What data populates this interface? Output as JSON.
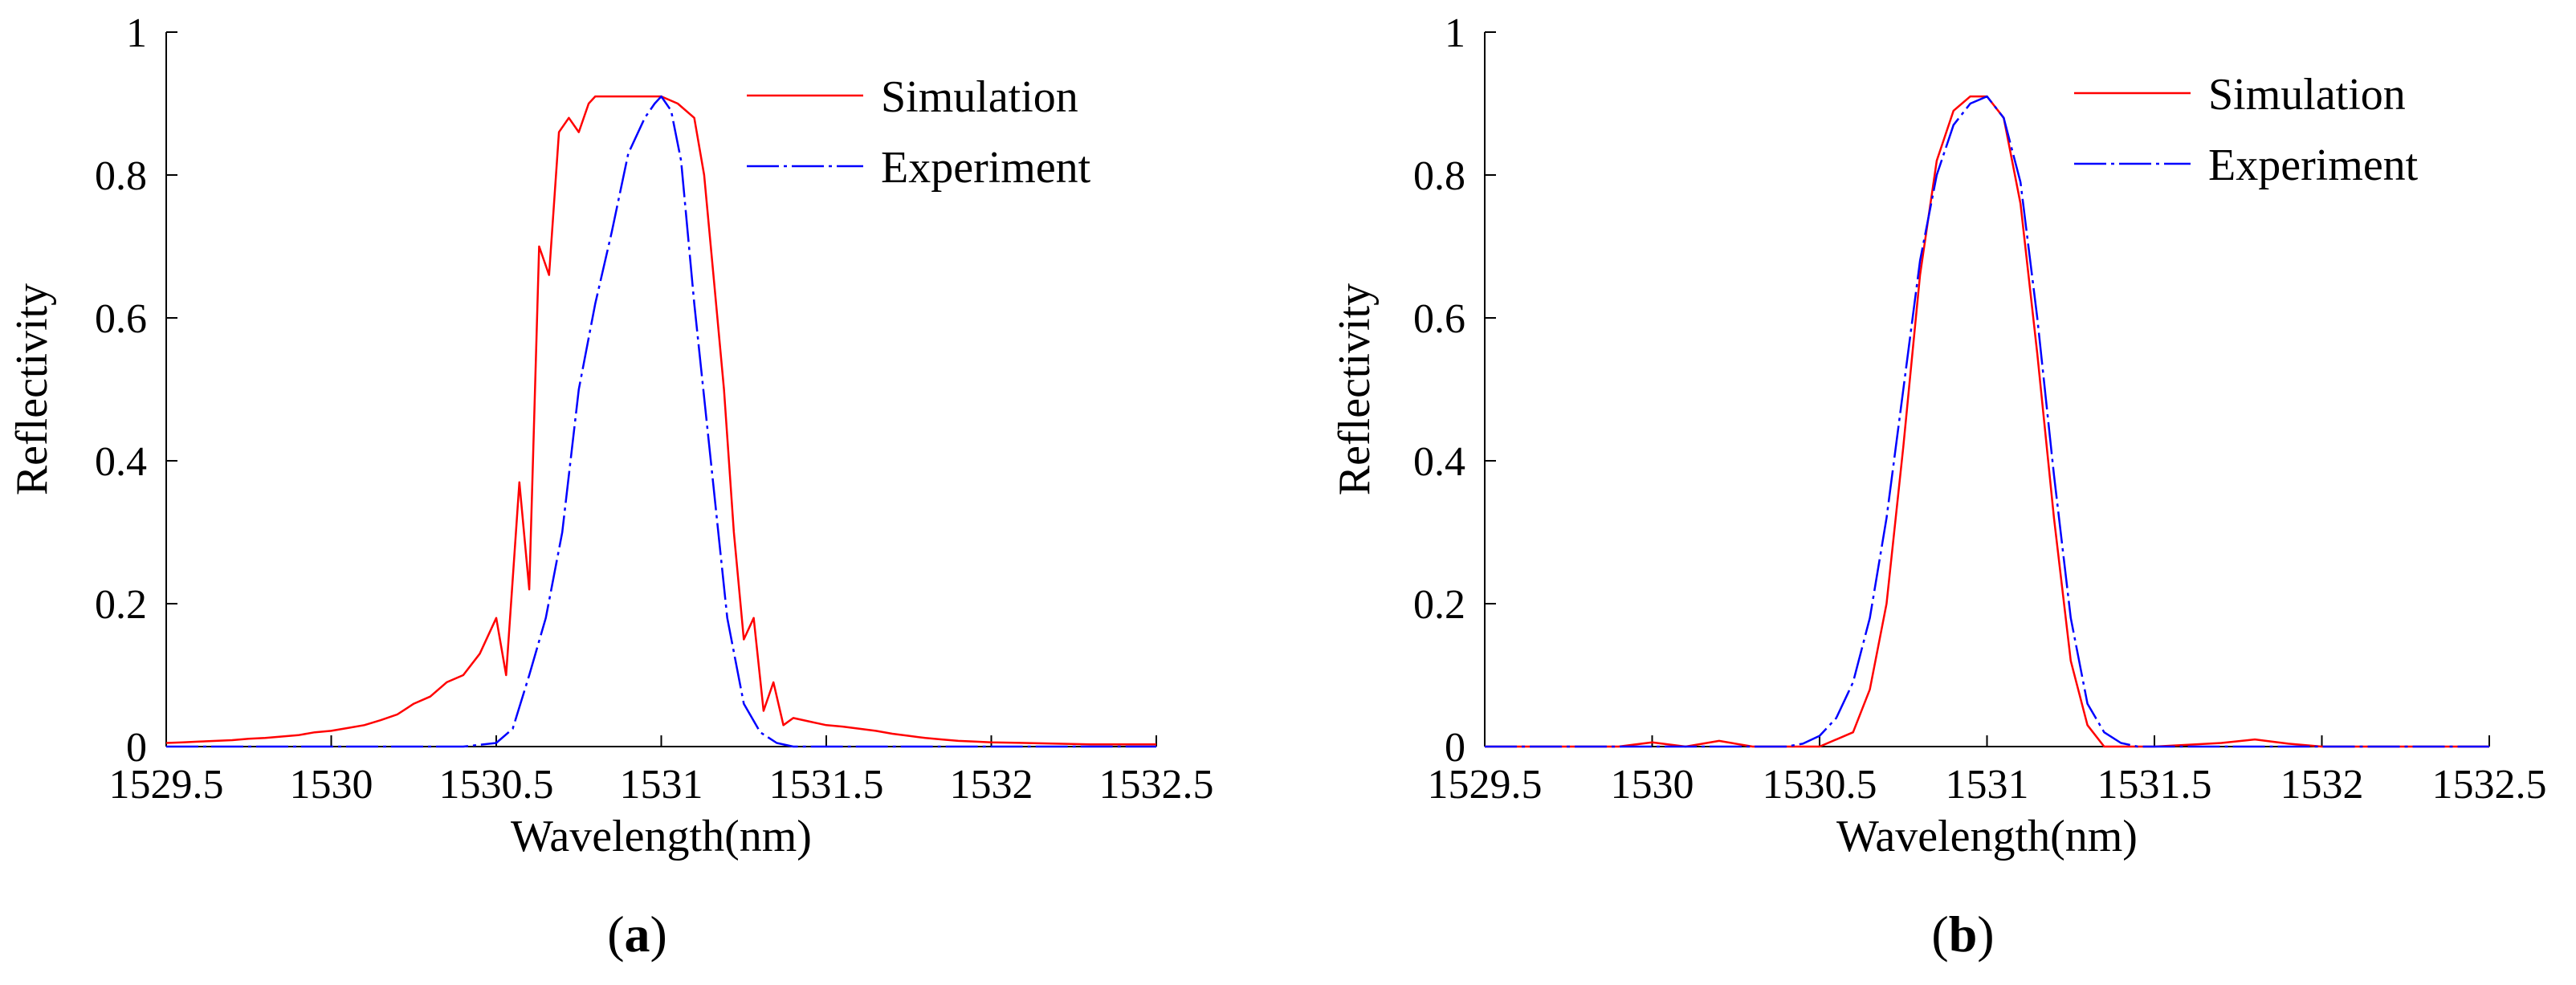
{
  "chart_data": [
    {
      "type": "line",
      "panel": "a",
      "caption": "a",
      "xlabel": "Wavelength(nm)",
      "ylabel": "Reflectivity",
      "xlim": [
        1529.5,
        1532.5
      ],
      "ylim": [
        0,
        1
      ],
      "xticks": [
        1529.5,
        1530,
        1530.5,
        1531,
        1531.5,
        1532,
        1532.5
      ],
      "xtick_labels": [
        "1529.5",
        "1530",
        "1530.5",
        "1531",
        "1531.5",
        "1532",
        "1532.5"
      ],
      "yticks": [
        0,
        0.2,
        0.4,
        0.6,
        0.8,
        1
      ],
      "ytick_labels": [
        "0",
        "0.2",
        "0.4",
        "0.6",
        "0.8",
        "1"
      ],
      "legend": "top-right",
      "grid": false,
      "series": [
        {
          "name": "Simulation",
          "color": "#ff0000",
          "x": [
            1529.5,
            1529.55,
            1529.6,
            1529.65,
            1529.7,
            1529.75,
            1529.8,
            1529.85,
            1529.9,
            1529.95,
            1530.0,
            1530.05,
            1530.1,
            1530.15,
            1530.2,
            1530.25,
            1530.3,
            1530.35,
            1530.4,
            1530.45,
            1530.5,
            1530.53,
            1530.57,
            1530.6,
            1530.63,
            1530.66,
            1530.69,
            1530.72,
            1530.75,
            1530.78,
            1530.8,
            1530.83,
            1530.86,
            1530.9,
            1530.95,
            1531.0,
            1531.05,
            1531.1,
            1531.13,
            1531.16,
            1531.19,
            1531.22,
            1531.25,
            1531.28,
            1531.31,
            1531.34,
            1531.37,
            1531.4,
            1531.45,
            1531.5,
            1531.55,
            1531.6,
            1531.65,
            1531.7,
            1531.75,
            1531.8,
            1531.85,
            1531.9,
            1531.95,
            1532.0,
            1532.1,
            1532.2,
            1532.3,
            1532.5
          ],
          "y": [
            0.005,
            0.006,
            0.007,
            0.008,
            0.009,
            0.011,
            0.012,
            0.014,
            0.016,
            0.02,
            0.022,
            0.026,
            0.03,
            0.037,
            0.045,
            0.06,
            0.07,
            0.09,
            0.1,
            0.13,
            0.18,
            0.1,
            0.37,
            0.22,
            0.7,
            0.66,
            0.86,
            0.88,
            0.86,
            0.9,
            0.91,
            0.91,
            0.91,
            0.91,
            0.91,
            0.91,
            0.9,
            0.88,
            0.8,
            0.65,
            0.5,
            0.3,
            0.15,
            0.18,
            0.05,
            0.09,
            0.03,
            0.04,
            0.035,
            0.03,
            0.028,
            0.025,
            0.022,
            0.018,
            0.015,
            0.012,
            0.01,
            0.008,
            0.007,
            0.006,
            0.005,
            0.004,
            0.003,
            0.003
          ]
        },
        {
          "name": "Experiment",
          "color": "#0000ff",
          "x": [
            1529.5,
            1530.0,
            1530.4,
            1530.5,
            1530.55,
            1530.6,
            1530.65,
            1530.7,
            1530.75,
            1530.8,
            1530.85,
            1530.9,
            1530.95,
            1530.98,
            1531.0,
            1531.03,
            1531.06,
            1531.1,
            1531.15,
            1531.2,
            1531.25,
            1531.3,
            1531.35,
            1531.4,
            1531.5,
            1532.0,
            1532.5
          ],
          "y": [
            0.0,
            0.0,
            0.0,
            0.005,
            0.025,
            0.1,
            0.18,
            0.3,
            0.5,
            0.62,
            0.72,
            0.83,
            0.88,
            0.9,
            0.91,
            0.89,
            0.82,
            0.62,
            0.4,
            0.18,
            0.06,
            0.02,
            0.005,
            0.0,
            0.0,
            0.0,
            0.0
          ]
        }
      ]
    },
    {
      "type": "line",
      "panel": "b",
      "caption": "b",
      "xlabel": "Wavelength(nm)",
      "ylabel": "Reflectivity",
      "xlim": [
        1529.5,
        1532.5
      ],
      "ylim": [
        0,
        1
      ],
      "xticks": [
        1529.5,
        1530,
        1530.5,
        1531,
        1531.5,
        1532,
        1532.5
      ],
      "xtick_labels": [
        "1529.5",
        "1530",
        "1530.5",
        "1531",
        "1531.5",
        "1532",
        "1532.5"
      ],
      "yticks": [
        0,
        0.2,
        0.4,
        0.6,
        0.8,
        1
      ],
      "ytick_labels": [
        "0",
        "0.2",
        "0.4",
        "0.6",
        "0.8",
        "1"
      ],
      "legend": "top-right",
      "grid": false,
      "series": [
        {
          "name": "Simulation",
          "color": "#ff0000",
          "x": [
            1529.5,
            1529.9,
            1530.0,
            1530.1,
            1530.2,
            1530.3,
            1530.5,
            1530.6,
            1530.65,
            1530.7,
            1530.75,
            1530.8,
            1530.85,
            1530.9,
            1530.95,
            1531.0,
            1531.05,
            1531.1,
            1531.15,
            1531.2,
            1531.25,
            1531.3,
            1531.35,
            1531.4,
            1531.5,
            1531.7,
            1531.8,
            1531.9,
            1532.0,
            1532.5
          ],
          "y": [
            0.0,
            0.0,
            0.006,
            0.0,
            0.008,
            0.0,
            0.0,
            0.02,
            0.08,
            0.2,
            0.42,
            0.66,
            0.82,
            0.89,
            0.91,
            0.91,
            0.88,
            0.76,
            0.55,
            0.32,
            0.12,
            0.03,
            0.0,
            0.0,
            0.0,
            0.005,
            0.01,
            0.004,
            0.0,
            0.0
          ]
        },
        {
          "name": "Experiment",
          "color": "#0000ff",
          "x": [
            1529.5,
            1530.4,
            1530.45,
            1530.5,
            1530.55,
            1530.6,
            1530.65,
            1530.7,
            1530.75,
            1530.8,
            1530.85,
            1530.9,
            1530.95,
            1531.0,
            1531.05,
            1531.1,
            1531.15,
            1531.2,
            1531.25,
            1531.3,
            1531.35,
            1531.4,
            1531.45,
            1532.5
          ],
          "y": [
            0.0,
            0.0,
            0.004,
            0.015,
            0.04,
            0.09,
            0.18,
            0.32,
            0.5,
            0.68,
            0.8,
            0.87,
            0.9,
            0.91,
            0.88,
            0.79,
            0.6,
            0.38,
            0.18,
            0.06,
            0.02,
            0.005,
            0.0,
            0.0
          ]
        }
      ]
    }
  ]
}
